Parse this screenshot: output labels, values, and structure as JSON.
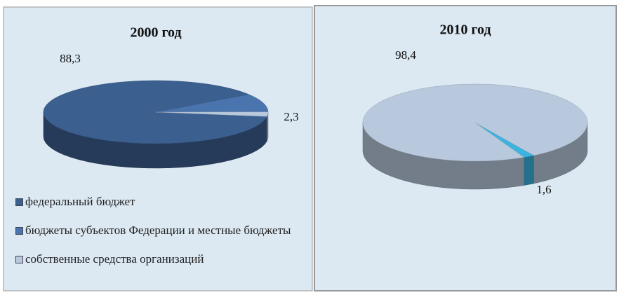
{
  "chart_data": [
    {
      "type": "pie",
      "title": "2000 год",
      "categories": [
        "федеральный бюджет",
        "бюджеты субъектов Федерации и местные бюджеты",
        "собственные средства организаций"
      ],
      "values": [
        88.3,
        9.4,
        2.3
      ],
      "value_labels": [
        "88,3",
        null,
        "2,3"
      ],
      "colors": [
        "#3b5f8f",
        "#4a74ad",
        "#b9c9dd"
      ],
      "legend": "bottom"
    },
    {
      "type": "pie",
      "title": "2010 год",
      "values": [
        1.6,
        98.4
      ],
      "value_labels": [
        "1,6",
        "98,4"
      ],
      "colors": [
        "#3bb4e0",
        "#b9c9dd"
      ]
    }
  ]
}
